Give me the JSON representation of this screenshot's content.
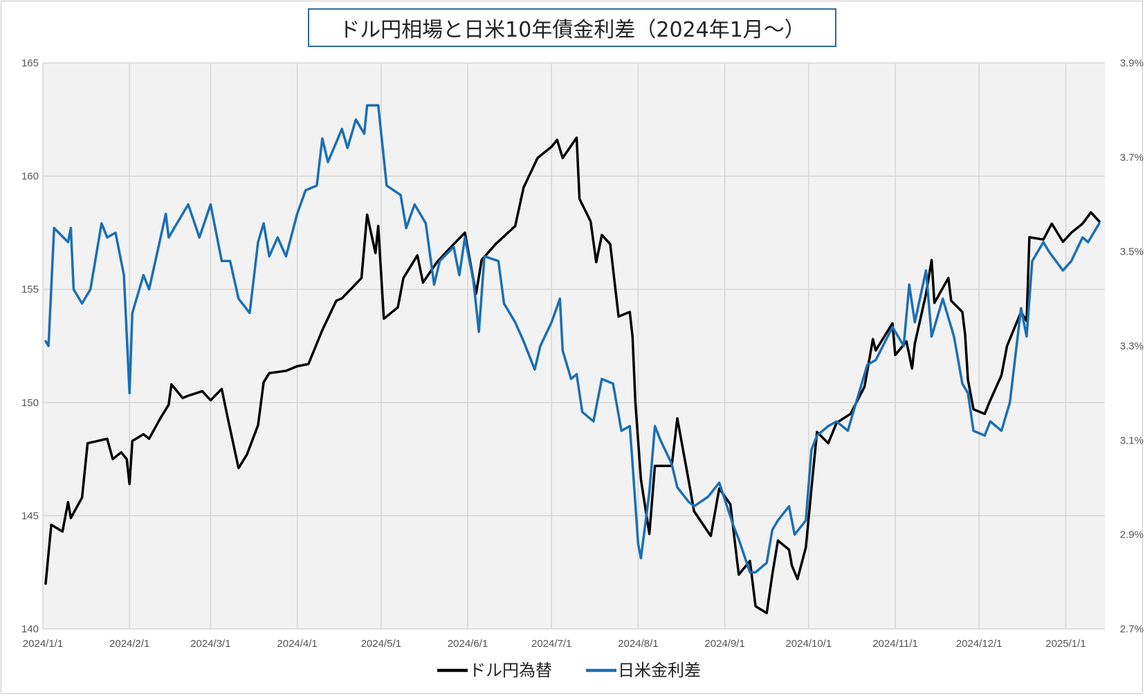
{
  "chart_data": {
    "type": "line",
    "title": "ドル円相場と日米10年債金利差（2024年1月～）",
    "xlabel": "",
    "ylabel": "",
    "x_ticks": [
      "2024/1/1",
      "2024/2/1",
      "2024/3/1",
      "2024/4/1",
      "2024/5/1",
      "2024/6/1",
      "2024/7/1",
      "2024/8/1",
      "2024/9/1",
      "2024/10/1",
      "2024/11/1",
      "2024/12/1",
      "2025/1/1"
    ],
    "y_left_ticks": [
      "140",
      "145",
      "150",
      "155",
      "160",
      "165"
    ],
    "y_right_ticks": [
      "2.7%",
      "2.9%",
      "3.1%",
      "3.3%",
      "3.5%",
      "3.7%",
      "3.9%"
    ],
    "ylim_left": [
      140,
      165
    ],
    "ylim_right": [
      2.7,
      3.9
    ],
    "xlim": [
      "2024-01-01",
      "2025-01-15"
    ],
    "grid": true,
    "legend_position": "bottom",
    "series": [
      {
        "name": "ドル円為替",
        "axis": "left",
        "color": "#000000",
        "points": [
          [
            "2024-01-02",
            142.0
          ],
          [
            "2024-01-04",
            144.6
          ],
          [
            "2024-01-08",
            144.3
          ],
          [
            "2024-01-10",
            145.6
          ],
          [
            "2024-01-11",
            144.9
          ],
          [
            "2024-01-15",
            145.8
          ],
          [
            "2024-01-17",
            148.2
          ],
          [
            "2024-01-24",
            148.4
          ],
          [
            "2024-01-26",
            147.5
          ],
          [
            "2024-01-29",
            147.8
          ],
          [
            "2024-01-31",
            147.5
          ],
          [
            "2024-02-01",
            146.4
          ],
          [
            "2024-02-02",
            148.3
          ],
          [
            "2024-02-06",
            148.6
          ],
          [
            "2024-02-08",
            148.4
          ],
          [
            "2024-02-12",
            149.3
          ],
          [
            "2024-02-15",
            149.9
          ],
          [
            "2024-02-16",
            150.8
          ],
          [
            "2024-02-20",
            150.2
          ],
          [
            "2024-02-22",
            150.3
          ],
          [
            "2024-02-27",
            150.5
          ],
          [
            "2024-03-01",
            150.1
          ],
          [
            "2024-03-05",
            150.6
          ],
          [
            "2024-03-07",
            149.4
          ],
          [
            "2024-03-11",
            147.1
          ],
          [
            "2024-03-14",
            147.7
          ],
          [
            "2024-03-18",
            149.0
          ],
          [
            "2024-03-20",
            150.9
          ],
          [
            "2024-03-22",
            151.3
          ],
          [
            "2024-03-28",
            151.4
          ],
          [
            "2024-04-01",
            151.6
          ],
          [
            "2024-04-05",
            151.7
          ],
          [
            "2024-04-10",
            153.2
          ],
          [
            "2024-04-15",
            154.5
          ],
          [
            "2024-04-17",
            154.6
          ],
          [
            "2024-04-24",
            155.5
          ],
          [
            "2024-04-26",
            158.3
          ],
          [
            "2024-04-29",
            156.6
          ],
          [
            "2024-04-30",
            157.8
          ],
          [
            "2024-05-02",
            153.7
          ],
          [
            "2024-05-07",
            154.2
          ],
          [
            "2024-05-09",
            155.5
          ],
          [
            "2024-05-14",
            156.5
          ],
          [
            "2024-05-16",
            155.3
          ],
          [
            "2024-05-21",
            156.2
          ],
          [
            "2024-05-27",
            157.0
          ],
          [
            "2024-05-31",
            157.5
          ],
          [
            "2024-06-04",
            154.8
          ],
          [
            "2024-06-06",
            156.3
          ],
          [
            "2024-06-11",
            157.0
          ],
          [
            "2024-06-18",
            157.8
          ],
          [
            "2024-06-21",
            159.5
          ],
          [
            "2024-06-26",
            160.8
          ],
          [
            "2024-07-01",
            161.3
          ],
          [
            "2024-07-03",
            161.6
          ],
          [
            "2024-07-05",
            160.8
          ],
          [
            "2024-07-10",
            161.7
          ],
          [
            "2024-07-11",
            159.0
          ],
          [
            "2024-07-15",
            158.0
          ],
          [
            "2024-07-17",
            156.2
          ],
          [
            "2024-07-19",
            157.4
          ],
          [
            "2024-07-22",
            157.0
          ],
          [
            "2024-07-25",
            153.8
          ],
          [
            "2024-07-29",
            154.0
          ],
          [
            "2024-07-30",
            152.9
          ],
          [
            "2024-07-31",
            150.0
          ],
          [
            "2024-08-02",
            146.6
          ],
          [
            "2024-08-05",
            144.2
          ],
          [
            "2024-08-07",
            147.2
          ],
          [
            "2024-08-13",
            147.2
          ],
          [
            "2024-08-15",
            149.3
          ],
          [
            "2024-08-19",
            146.6
          ],
          [
            "2024-08-21",
            145.2
          ],
          [
            "2024-08-27",
            144.1
          ],
          [
            "2024-08-30",
            146.2
          ],
          [
            "2024-09-03",
            145.5
          ],
          [
            "2024-09-06",
            142.4
          ],
          [
            "2024-09-10",
            143.0
          ],
          [
            "2024-09-12",
            141.0
          ],
          [
            "2024-09-16",
            140.7
          ],
          [
            "2024-09-18",
            142.4
          ],
          [
            "2024-09-20",
            143.9
          ],
          [
            "2024-09-24",
            143.5
          ],
          [
            "2024-09-25",
            142.8
          ],
          [
            "2024-09-27",
            142.2
          ],
          [
            "2024-09-30",
            143.6
          ],
          [
            "2024-10-02",
            146.2
          ],
          [
            "2024-10-04",
            148.7
          ],
          [
            "2024-10-08",
            148.2
          ],
          [
            "2024-10-11",
            149.1
          ],
          [
            "2024-10-16",
            149.5
          ],
          [
            "2024-10-21",
            150.7
          ],
          [
            "2024-10-24",
            152.8
          ],
          [
            "2024-10-25",
            152.3
          ],
          [
            "2024-10-31",
            153.5
          ],
          [
            "2024-11-01",
            152.1
          ],
          [
            "2024-11-05",
            152.7
          ],
          [
            "2024-11-07",
            151.5
          ],
          [
            "2024-11-08",
            152.6
          ],
          [
            "2024-11-12",
            154.8
          ],
          [
            "2024-11-14",
            156.3
          ],
          [
            "2024-11-15",
            154.4
          ],
          [
            "2024-11-20",
            155.5
          ],
          [
            "2024-11-21",
            154.5
          ],
          [
            "2024-11-25",
            154.0
          ],
          [
            "2024-11-26",
            153.0
          ],
          [
            "2024-11-27",
            151.0
          ],
          [
            "2024-11-29",
            149.7
          ],
          [
            "2024-12-03",
            149.5
          ],
          [
            "2024-12-05",
            150.1
          ],
          [
            "2024-12-09",
            151.2
          ],
          [
            "2024-12-11",
            152.5
          ],
          [
            "2024-12-16",
            154.0
          ],
          [
            "2024-12-18",
            153.6
          ],
          [
            "2024-12-19",
            157.3
          ],
          [
            "2024-12-24",
            157.2
          ],
          [
            "2024-12-27",
            157.9
          ],
          [
            "2024-12-31",
            157.1
          ],
          [
            "2025-01-03",
            157.5
          ],
          [
            "2025-01-07",
            157.9
          ],
          [
            "2025-01-10",
            158.4
          ],
          [
            "2025-01-13",
            158.0
          ]
        ]
      },
      {
        "name": "日米金利差",
        "axis": "right",
        "color": "#1a6fb5",
        "points": [
          [
            "2024-01-02",
            3.31
          ],
          [
            "2024-01-03",
            3.3
          ],
          [
            "2024-01-05",
            3.55
          ],
          [
            "2024-01-10",
            3.52
          ],
          [
            "2024-01-11",
            3.55
          ],
          [
            "2024-01-12",
            3.42
          ],
          [
            "2024-01-15",
            3.39
          ],
          [
            "2024-01-18",
            3.42
          ],
          [
            "2024-01-22",
            3.56
          ],
          [
            "2024-01-24",
            3.53
          ],
          [
            "2024-01-27",
            3.54
          ],
          [
            "2024-01-30",
            3.45
          ],
          [
            "2024-02-01",
            3.2
          ],
          [
            "2024-02-02",
            3.37
          ],
          [
            "2024-02-06",
            3.45
          ],
          [
            "2024-02-08",
            3.42
          ],
          [
            "2024-02-14",
            3.58
          ],
          [
            "2024-02-15",
            3.53
          ],
          [
            "2024-02-20",
            3.58
          ],
          [
            "2024-02-22",
            3.6
          ],
          [
            "2024-02-26",
            3.53
          ],
          [
            "2024-03-01",
            3.6
          ],
          [
            "2024-03-05",
            3.48
          ],
          [
            "2024-03-08",
            3.48
          ],
          [
            "2024-03-11",
            3.4
          ],
          [
            "2024-03-15",
            3.37
          ],
          [
            "2024-03-18",
            3.52
          ],
          [
            "2024-03-20",
            3.56
          ],
          [
            "2024-03-22",
            3.49
          ],
          [
            "2024-03-25",
            3.53
          ],
          [
            "2024-03-28",
            3.49
          ],
          [
            "2024-04-01",
            3.58
          ],
          [
            "2024-04-04",
            3.63
          ],
          [
            "2024-04-08",
            3.64
          ],
          [
            "2024-04-10",
            3.74
          ],
          [
            "2024-04-12",
            3.69
          ],
          [
            "2024-04-17",
            3.76
          ],
          [
            "2024-04-19",
            3.72
          ],
          [
            "2024-04-22",
            3.78
          ],
          [
            "2024-04-25",
            3.75
          ],
          [
            "2024-04-26",
            3.81
          ],
          [
            "2024-04-30",
            3.81
          ],
          [
            "2024-05-03",
            3.64
          ],
          [
            "2024-05-08",
            3.62
          ],
          [
            "2024-05-10",
            3.55
          ],
          [
            "2024-05-13",
            3.6
          ],
          [
            "2024-05-17",
            3.56
          ],
          [
            "2024-05-20",
            3.43
          ],
          [
            "2024-05-22",
            3.48
          ],
          [
            "2024-05-27",
            3.51
          ],
          [
            "2024-05-29",
            3.45
          ],
          [
            "2024-05-31",
            3.53
          ],
          [
            "2024-06-03",
            3.44
          ],
          [
            "2024-06-05",
            3.33
          ],
          [
            "2024-06-07",
            3.49
          ],
          [
            "2024-06-12",
            3.48
          ],
          [
            "2024-06-14",
            3.39
          ],
          [
            "2024-06-18",
            3.35
          ],
          [
            "2024-06-21",
            3.31
          ],
          [
            "2024-06-25",
            3.25
          ],
          [
            "2024-06-27",
            3.3
          ],
          [
            "2024-07-01",
            3.35
          ],
          [
            "2024-07-04",
            3.4
          ],
          [
            "2024-07-05",
            3.29
          ],
          [
            "2024-07-08",
            3.23
          ],
          [
            "2024-07-10",
            3.24
          ],
          [
            "2024-07-12",
            3.16
          ],
          [
            "2024-07-16",
            3.14
          ],
          [
            "2024-07-19",
            3.23
          ],
          [
            "2024-07-23",
            3.22
          ],
          [
            "2024-07-26",
            3.12
          ],
          [
            "2024-07-29",
            3.13
          ],
          [
            "2024-07-30",
            3.05
          ],
          [
            "2024-08-01",
            2.88
          ],
          [
            "2024-08-02",
            2.85
          ],
          [
            "2024-08-05",
            2.99
          ],
          [
            "2024-08-07",
            3.13
          ],
          [
            "2024-08-09",
            3.1
          ],
          [
            "2024-08-13",
            3.05
          ],
          [
            "2024-08-15",
            3.0
          ],
          [
            "2024-08-19",
            2.97
          ],
          [
            "2024-08-21",
            2.96
          ],
          [
            "2024-08-26",
            2.98
          ],
          [
            "2024-08-30",
            3.01
          ],
          [
            "2024-09-04",
            2.92
          ],
          [
            "2024-09-06",
            2.89
          ],
          [
            "2024-09-10",
            2.82
          ],
          [
            "2024-09-12",
            2.82
          ],
          [
            "2024-09-16",
            2.84
          ],
          [
            "2024-09-18",
            2.91
          ],
          [
            "2024-09-20",
            2.93
          ],
          [
            "2024-09-24",
            2.96
          ],
          [
            "2024-09-26",
            2.9
          ],
          [
            "2024-09-30",
            2.93
          ],
          [
            "2024-10-02",
            3.08
          ],
          [
            "2024-10-04",
            3.11
          ],
          [
            "2024-10-08",
            3.13
          ],
          [
            "2024-10-11",
            3.14
          ],
          [
            "2024-10-15",
            3.12
          ],
          [
            "2024-10-18",
            3.18
          ],
          [
            "2024-10-22",
            3.26
          ],
          [
            "2024-10-25",
            3.27
          ],
          [
            "2024-10-31",
            3.34
          ],
          [
            "2024-11-04",
            3.3
          ],
          [
            "2024-11-06",
            3.43
          ],
          [
            "2024-11-08",
            3.35
          ],
          [
            "2024-11-12",
            3.46
          ],
          [
            "2024-11-14",
            3.32
          ],
          [
            "2024-11-18",
            3.4
          ],
          [
            "2024-11-20",
            3.36
          ],
          [
            "2024-11-22",
            3.32
          ],
          [
            "2024-11-25",
            3.22
          ],
          [
            "2024-11-27",
            3.2
          ],
          [
            "2024-11-29",
            3.12
          ],
          [
            "2024-12-03",
            3.11
          ],
          [
            "2024-12-05",
            3.14
          ],
          [
            "2024-12-09",
            3.12
          ],
          [
            "2024-12-12",
            3.18
          ],
          [
            "2024-12-16",
            3.38
          ],
          [
            "2024-12-18",
            3.32
          ],
          [
            "2024-12-20",
            3.48
          ],
          [
            "2024-12-24",
            3.52
          ],
          [
            "2024-12-26",
            3.5
          ],
          [
            "2024-12-31",
            3.46
          ],
          [
            "2025-01-03",
            3.48
          ],
          [
            "2025-01-07",
            3.53
          ],
          [
            "2025-01-09",
            3.52
          ],
          [
            "2025-01-13",
            3.56
          ]
        ]
      }
    ]
  }
}
